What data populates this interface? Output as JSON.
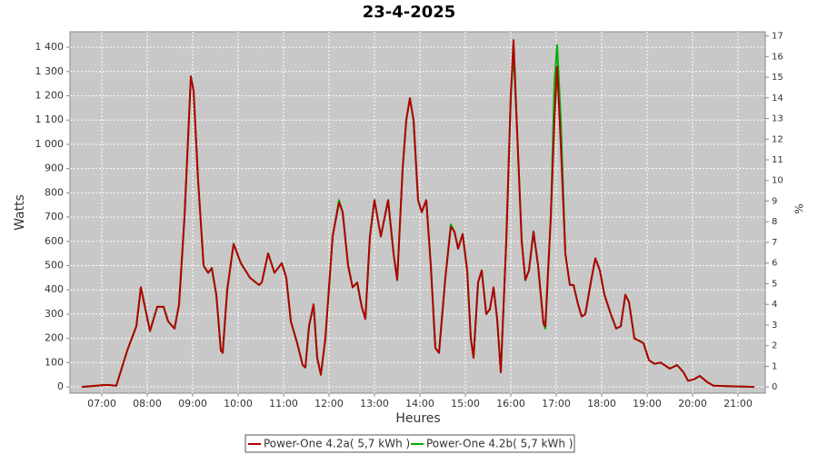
{
  "chart_data": {
    "type": "line",
    "title": "23-4-2025",
    "xlabel": "Heures",
    "ylabel": "Watts",
    "y2label": "%",
    "x": [
      6.56,
      7.1,
      7.32,
      7.56,
      7.76,
      7.86,
      8.06,
      8.22,
      8.36,
      8.46,
      8.6,
      8.7,
      8.82,
      8.96,
      9.02,
      9.12,
      9.24,
      9.34,
      9.42,
      9.52,
      9.62,
      9.66,
      9.76,
      9.9,
      10.06,
      10.26,
      10.46,
      10.52,
      10.66,
      10.8,
      10.96,
      11.06,
      11.16,
      11.3,
      11.42,
      11.48,
      11.56,
      11.66,
      11.74,
      11.82,
      11.92,
      12.08,
      12.22,
      12.3,
      12.42,
      12.52,
      12.62,
      12.72,
      12.8,
      12.9,
      13.0,
      13.14,
      13.3,
      13.42,
      13.5,
      13.62,
      13.7,
      13.78,
      13.86,
      13.96,
      14.04,
      14.14,
      14.24,
      14.34,
      14.42,
      14.56,
      14.68,
      14.76,
      14.84,
      14.94,
      15.04,
      15.12,
      15.18,
      15.28,
      15.36,
      15.46,
      15.54,
      15.62,
      15.7,
      15.78,
      15.9,
      16.0,
      16.06,
      16.14,
      16.24,
      16.32,
      16.4,
      16.5,
      16.6,
      16.72,
      16.76,
      16.88,
      16.96,
      17.02,
      17.1,
      17.2,
      17.3,
      17.38,
      17.48,
      17.56,
      17.64,
      17.76,
      17.86,
      17.96,
      18.06,
      18.2,
      18.32,
      18.42,
      18.52,
      18.6,
      18.72,
      18.82,
      18.92,
      19.04,
      19.16,
      19.3,
      19.5,
      19.66,
      19.8,
      19.9,
      20.02,
      20.16,
      20.32,
      20.46,
      20.76,
      21.36
    ],
    "series": [
      {
        "name": "Power-One 4.2a( 5,7 kWh )",
        "color": "#b00000",
        "values": [
          0,
          8,
          5,
          150,
          250,
          410,
          230,
          330,
          330,
          270,
          240,
          340,
          700,
          1280,
          1220,
          850,
          500,
          470,
          490,
          380,
          150,
          140,
          400,
          590,
          510,
          450,
          420,
          430,
          550,
          470,
          510,
          450,
          270,
          180,
          90,
          80,
          250,
          340,
          120,
          50,
          200,
          620,
          760,
          720,
          500,
          410,
          430,
          330,
          280,
          620,
          770,
          620,
          770,
          550,
          440,
          900,
          1100,
          1190,
          1100,
          770,
          720,
          770,
          500,
          160,
          140,
          450,
          660,
          640,
          570,
          630,
          480,
          200,
          120,
          430,
          480,
          300,
          320,
          410,
          280,
          60,
          600,
          1200,
          1430,
          1050,
          600,
          440,
          480,
          640,
          500,
          260,
          250,
          700,
          1100,
          1320,
          1000,
          550,
          420,
          420,
          340,
          290,
          300,
          430,
          530,
          480,
          380,
          300,
          240,
          250,
          380,
          350,
          200,
          190,
          180,
          110,
          95,
          100,
          75,
          90,
          60,
          25,
          30,
          45,
          20,
          5,
          3,
          0
        ]
      },
      {
        "name": "Power-One 4.2b( 5,7 kWh )",
        "color": "#00b000",
        "values": [
          0,
          8,
          5,
          150,
          250,
          410,
          230,
          330,
          330,
          270,
          240,
          340,
          700,
          1280,
          1220,
          850,
          500,
          470,
          490,
          380,
          150,
          140,
          400,
          590,
          510,
          450,
          420,
          430,
          550,
          470,
          510,
          450,
          270,
          180,
          90,
          80,
          250,
          340,
          120,
          50,
          200,
          620,
          770,
          720,
          500,
          410,
          430,
          330,
          280,
          620,
          770,
          620,
          770,
          550,
          440,
          900,
          1100,
          1190,
          1100,
          770,
          720,
          770,
          500,
          160,
          140,
          450,
          670,
          640,
          570,
          630,
          480,
          200,
          120,
          430,
          480,
          300,
          320,
          410,
          280,
          60,
          600,
          1200,
          1380,
          1050,
          600,
          440,
          480,
          640,
          500,
          260,
          240,
          700,
          1250,
          1410,
          1100,
          550,
          420,
          420,
          340,
          290,
          300,
          430,
          530,
          480,
          380,
          300,
          240,
          250,
          380,
          350,
          200,
          190,
          180,
          110,
          95,
          100,
          75,
          90,
          60,
          25,
          30,
          45,
          20,
          5,
          3,
          0
        ]
      }
    ],
    "xlim": [
      6.3,
      21.6
    ],
    "xticks": [
      {
        "value": 7,
        "label": "07:00"
      },
      {
        "value": 8,
        "label": "08:00"
      },
      {
        "value": 9,
        "label": "09:00"
      },
      {
        "value": 10,
        "label": "10:00"
      },
      {
        "value": 11,
        "label": "11:00"
      },
      {
        "value": 12,
        "label": "12:00"
      },
      {
        "value": 13,
        "label": "13:00"
      },
      {
        "value": 14,
        "label": "14:00"
      },
      {
        "value": 15,
        "label": "15:00"
      },
      {
        "value": 16,
        "label": "16:00"
      },
      {
        "value": 17,
        "label": "17:00"
      },
      {
        "value": 18,
        "label": "18:00"
      },
      {
        "value": 19,
        "label": "19:00"
      },
      {
        "value": 20,
        "label": "20:00"
      },
      {
        "value": 21,
        "label": "21:00"
      }
    ],
    "ylim": [
      -26,
      1464
    ],
    "yticks": [
      0,
      100,
      200,
      300,
      400,
      500,
      600,
      700,
      800,
      900,
      {
        "value": 1000,
        "label": "1 000"
      },
      {
        "value": 1100,
        "label": "1 100"
      },
      {
        "value": 1200,
        "label": "1 200"
      },
      {
        "value": 1300,
        "label": "1 300"
      },
      {
        "value": 1400,
        "label": "1 400"
      }
    ],
    "y2lim": [
      -0.3,
      17.2
    ],
    "y2ticks": [
      0,
      1,
      2,
      3,
      4,
      5,
      6,
      7,
      8,
      9,
      10,
      11,
      12,
      13,
      14,
      15,
      16,
      17
    ],
    "grid": true
  }
}
